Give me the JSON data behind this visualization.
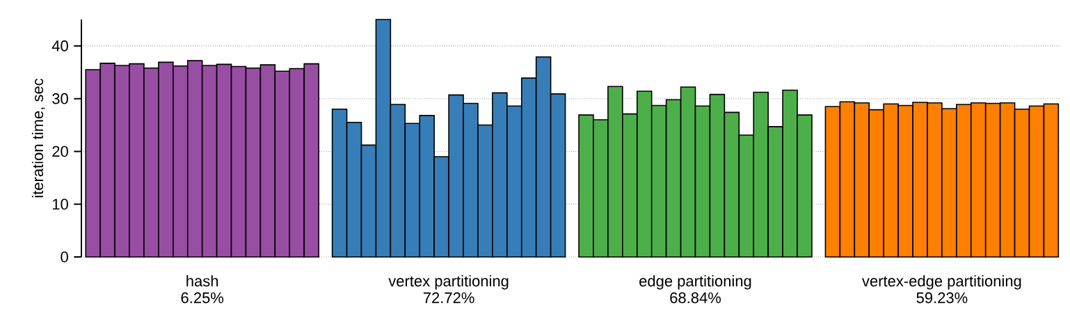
{
  "chart_data": {
    "type": "bar",
    "categories": [
      "hash",
      "vertex partitioning",
      "edge partitioning",
      "vertex-edge partitioning"
    ],
    "annotations": [
      "6.25%",
      "72.72%",
      "68.84%",
      "59.23%"
    ],
    "ylabel": "iteration time, sec",
    "ylim": [
      0,
      45
    ],
    "yticks": [
      0,
      10,
      20,
      30,
      40
    ],
    "grid": "y",
    "series": [
      {
        "values": [
          35.5,
          28.0,
          26.9,
          28.5
        ],
        "colors": [
          "#984ea3",
          "#377eb8",
          "#4daf4a",
          "#ff7f00"
        ]
      },
      {
        "values": [
          36.7,
          25.5,
          26.0,
          29.4
        ],
        "colors": [
          "#984ea3",
          "#377eb8",
          "#4daf4a",
          "#ff7f00"
        ]
      },
      {
        "values": [
          36.3,
          21.2,
          32.3,
          29.2
        ],
        "colors": [
          "#984ea3",
          "#377eb8",
          "#4daf4a",
          "#ff7f00"
        ]
      },
      {
        "values": [
          36.6,
          45,
          27.1,
          27.9
        ],
        "colors": [
          "#984ea3",
          "#377eb8",
          "#4daf4a",
          "#ff7f00"
        ]
      },
      {
        "values": [
          35.8,
          28.9,
          31.4,
          29.0
        ],
        "colors": [
          "#984ea3",
          "#377eb8",
          "#4daf4a",
          "#ff7f00"
        ]
      },
      {
        "values": [
          36.9,
          25.3,
          28.7,
          28.7
        ],
        "colors": [
          "#984ea3",
          "#377eb8",
          "#4daf4a",
          "#ff7f00"
        ]
      },
      {
        "values": [
          36.2,
          26.8,
          29.8,
          29.3
        ],
        "colors": [
          "#984ea3",
          "#377eb8",
          "#4daf4a",
          "#ff7f00"
        ]
      },
      {
        "values": [
          37.2,
          19.0,
          32.2,
          29.2
        ],
        "colors": [
          "#984ea3",
          "#377eb8",
          "#4daf4a",
          "#ff7f00"
        ]
      },
      {
        "values": [
          36.3,
          30.7,
          28.6,
          28.1
        ],
        "colors": [
          "#984ea3",
          "#377eb8",
          "#4daf4a",
          "#ff7f00"
        ]
      },
      {
        "values": [
          36.5,
          29.1,
          30.8,
          28.9
        ],
        "colors": [
          "#984ea3",
          "#377eb8",
          "#4daf4a",
          "#ff7f00"
        ]
      },
      {
        "values": [
          36.1,
          25.0,
          27.4,
          29.2
        ],
        "colors": [
          "#984ea3",
          "#377eb8",
          "#4daf4a",
          "#ff7f00"
        ]
      },
      {
        "values": [
          35.8,
          31.1,
          23.1,
          29.1
        ],
        "colors": [
          "#984ea3",
          "#377eb8",
          "#4daf4a",
          "#ff7f00"
        ]
      },
      {
        "values": [
          36.4,
          28.6,
          31.2,
          29.2
        ],
        "colors": [
          "#984ea3",
          "#377eb8",
          "#4daf4a",
          "#ff7f00"
        ]
      },
      {
        "values": [
          35.2,
          33.9,
          24.7,
          28.0
        ],
        "colors": [
          "#984ea3",
          "#377eb8",
          "#4daf4a",
          "#ff7f00"
        ]
      },
      {
        "values": [
          35.7,
          37.9,
          31.6,
          28.6
        ],
        "colors": [
          "#984ea3",
          "#377eb8",
          "#4daf4a",
          "#ff7f00"
        ]
      },
      {
        "values": [
          36.6,
          30.9,
          26.9,
          29.0
        ],
        "colors": [
          "#984ea3",
          "#377eb8",
          "#4daf4a",
          "#ff7f00"
        ]
      }
    ]
  }
}
